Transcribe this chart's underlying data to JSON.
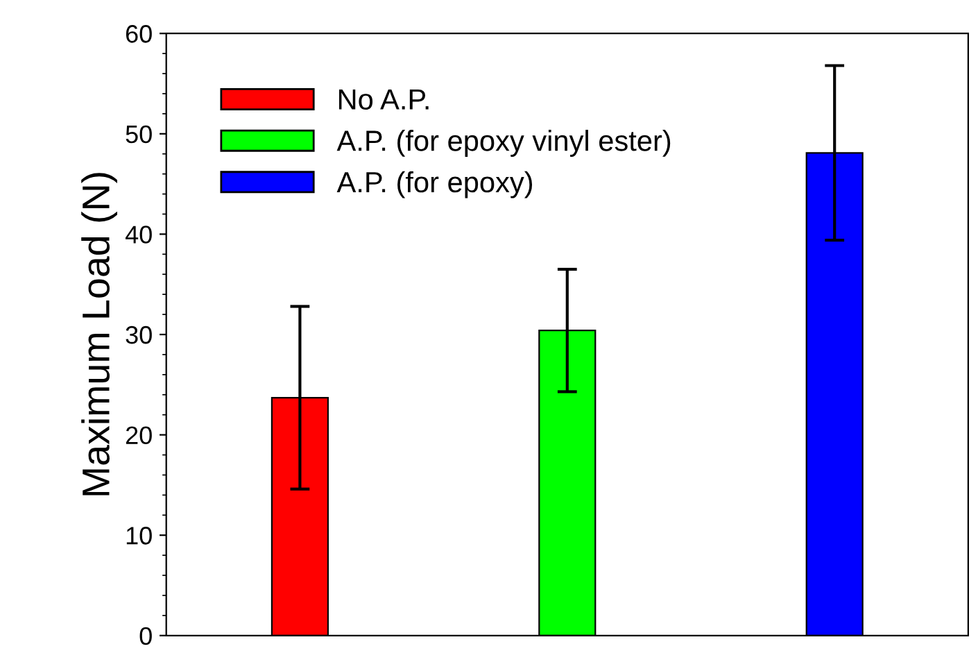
{
  "chart_data": {
    "type": "bar",
    "ylabel": "Maximum Load (N)",
    "categories": [
      null,
      null,
      null
    ],
    "series": [
      {
        "name": "No A.P.",
        "color": "#ff0000",
        "values": [
          23.7,
          null,
          null
        ],
        "errors": [
          9.1,
          null,
          null
        ]
      },
      {
        "name": "A.P. (for epoxy vinyl ester)",
        "color": "#00ff00",
        "values": [
          null,
          30.4,
          null
        ],
        "errors": [
          null,
          6.1,
          null
        ]
      },
      {
        "name": "A.P. (for epoxy)",
        "color": "#0000ff",
        "values": [
          null,
          null,
          48.1
        ],
        "errors": [
          null,
          null,
          8.7
        ]
      }
    ],
    "ylim": [
      0,
      60
    ],
    "yticks": [
      0,
      10,
      20,
      30,
      40,
      50,
      60
    ],
    "legend": "top left",
    "grid": false
  }
}
